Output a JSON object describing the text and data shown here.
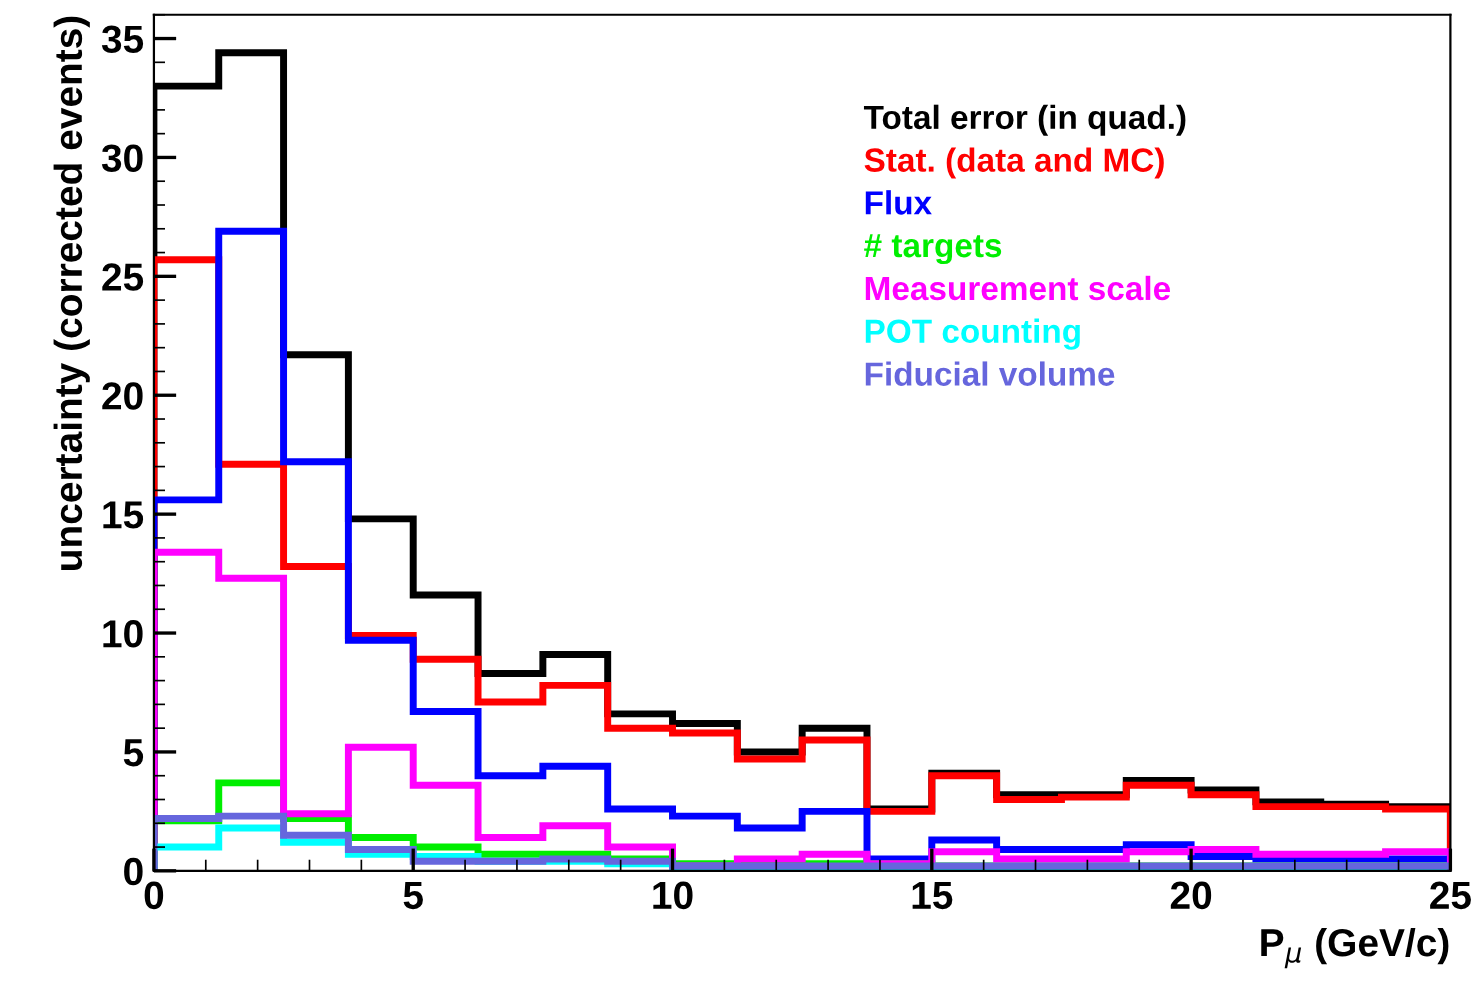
{
  "chart_data": {
    "type": "histogram",
    "xlabel": "P$_{μ}$ (GeV/c)",
    "ylabel": "uncertainty (corrected events)",
    "bins": [
      0,
      1.25,
      2.5,
      3.75,
      5,
      6.25,
      7.5,
      8.75,
      10,
      11.25,
      12.5,
      13.75,
      15,
      16.25,
      17.5,
      18.75,
      20,
      21.25,
      22.5,
      23.75,
      25
    ],
    "series": [
      {
        "name": "Total error (in quad.)",
        "color": "#000000",
        "values": [
          33.0,
          34.4,
          21.7,
          14.8,
          11.6,
          8.3,
          9.1,
          6.6,
          6.2,
          5.0,
          6.0,
          2.6,
          4.1,
          3.2,
          3.2,
          3.8,
          3.4,
          2.9,
          2.8,
          2.7
        ]
      },
      {
        "name": "Stat. (data and MC)",
        "color": "#ff0000",
        "values": [
          25.7,
          17.1,
          12.8,
          9.9,
          8.9,
          7.1,
          7.8,
          6.0,
          5.8,
          4.7,
          5.5,
          2.5,
          4.0,
          3.0,
          3.1,
          3.6,
          3.2,
          2.7,
          2.7,
          2.6
        ]
      },
      {
        "name": "Flux",
        "color": "#0000ff",
        "values": [
          15.6,
          26.9,
          17.2,
          9.7,
          6.7,
          4.0,
          4.4,
          2.6,
          2.3,
          1.8,
          2.5,
          0.5,
          1.3,
          0.9,
          0.9,
          1.1,
          0.6,
          0.5,
          0.5,
          0.5
        ]
      },
      {
        "name": "# targets",
        "color": "#00ee00",
        "values": [
          2.1,
          3.7,
          2.2,
          1.4,
          1.0,
          0.7,
          0.7,
          0.5,
          0.3,
          0.3,
          0.3,
          0.3,
          0.2,
          0.2,
          0.2,
          0.2,
          0.2,
          0.2,
          0.2,
          0.2
        ]
      },
      {
        "name": "Measurement scale",
        "color": "#ff00ff",
        "values": [
          13.4,
          12.3,
          2.4,
          5.2,
          3.6,
          1.4,
          1.9,
          1.0,
          0.2,
          0.5,
          0.7,
          0.3,
          0.8,
          0.5,
          0.5,
          0.8,
          0.9,
          0.7,
          0.7,
          0.8
        ]
      },
      {
        "name": "POT counting",
        "color": "#00ffff",
        "values": [
          1.0,
          1.8,
          1.2,
          0.7,
          0.6,
          0.4,
          0.4,
          0.3,
          0.1,
          0.1,
          0.1,
          0.1,
          0.1,
          0.1,
          0.1,
          0.1,
          0.1,
          0.1,
          0.1,
          0.1
        ]
      },
      {
        "name": "Fiducial volume",
        "color": "#6666dd",
        "values": [
          2.2,
          2.3,
          1.5,
          0.9,
          0.4,
          0.4,
          0.5,
          0.4,
          0.2,
          0.2,
          0.2,
          0.2,
          0.2,
          0.2,
          0.2,
          0.2,
          0.2,
          0.2,
          0.2,
          0.2
        ]
      }
    ],
    "xlim": [
      0,
      25
    ],
    "ylim": [
      0,
      36
    ],
    "xticks": [
      0,
      5,
      10,
      15,
      20,
      25
    ],
    "yticks": [
      0,
      5,
      10,
      15,
      20,
      25,
      30,
      35
    ],
    "grid": false,
    "legend": "top right"
  }
}
